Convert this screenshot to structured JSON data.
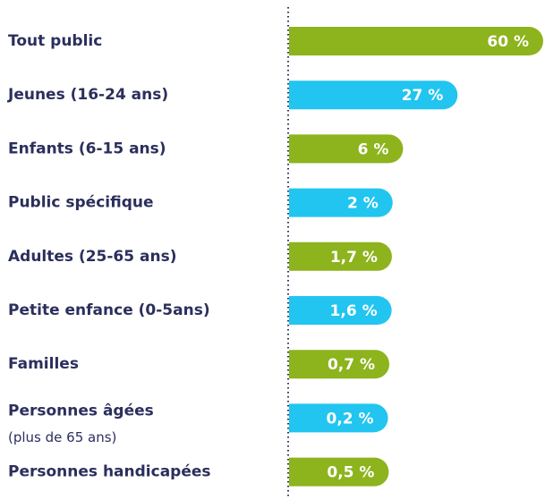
{
  "chart_data": {
    "type": "bar",
    "orientation": "horizontal",
    "categories": [
      "Tout public",
      "Jeunes (16-24 ans)",
      "Enfants (6-15 ans)",
      "Public spécifique",
      "Adultes (25-65 ans)",
      "Petite enfance (0-5ans)",
      "Familles",
      "Personnes âgées",
      "Personnes handicapées"
    ],
    "category_notes": [
      null,
      null,
      null,
      null,
      null,
      null,
      null,
      "(plus de 65 ans)",
      null
    ],
    "values": [
      60,
      27,
      6,
      2,
      1.7,
      1.6,
      0.7,
      0.2,
      0.5
    ],
    "value_labels": [
      "60 %",
      "27 %",
      "6 %",
      "2 %",
      "1,7 %",
      "1,6 %",
      "0,7 %",
      "0,2 %",
      "0,5 %"
    ],
    "colors": [
      "#8db31d",
      "#21c5f0"
    ]
  }
}
